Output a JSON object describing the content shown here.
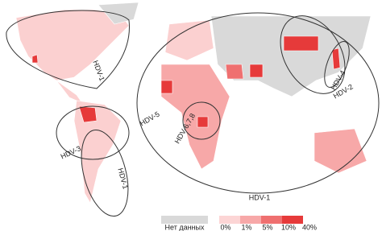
{
  "regions": [
    {
      "label": "HDV-1"
    },
    {
      "label": "HDV-3"
    },
    {
      "label": "HDV-1"
    },
    {
      "label": "HDV-5"
    },
    {
      "label": "HDV-6,7,8"
    },
    {
      "label": "HDV-4"
    },
    {
      "label": "HDV-2"
    },
    {
      "label": "HDV-1"
    }
  ],
  "legend": {
    "no_data": "Нет данных",
    "no_data_color": "#d9d9d9",
    "ticks": [
      "0%",
      "1%",
      "5%",
      "10%",
      "40%"
    ],
    "colors": [
      "#fcd5d5",
      "#f7a8a8",
      "#ef7070",
      "#e63a3a"
    ]
  }
}
